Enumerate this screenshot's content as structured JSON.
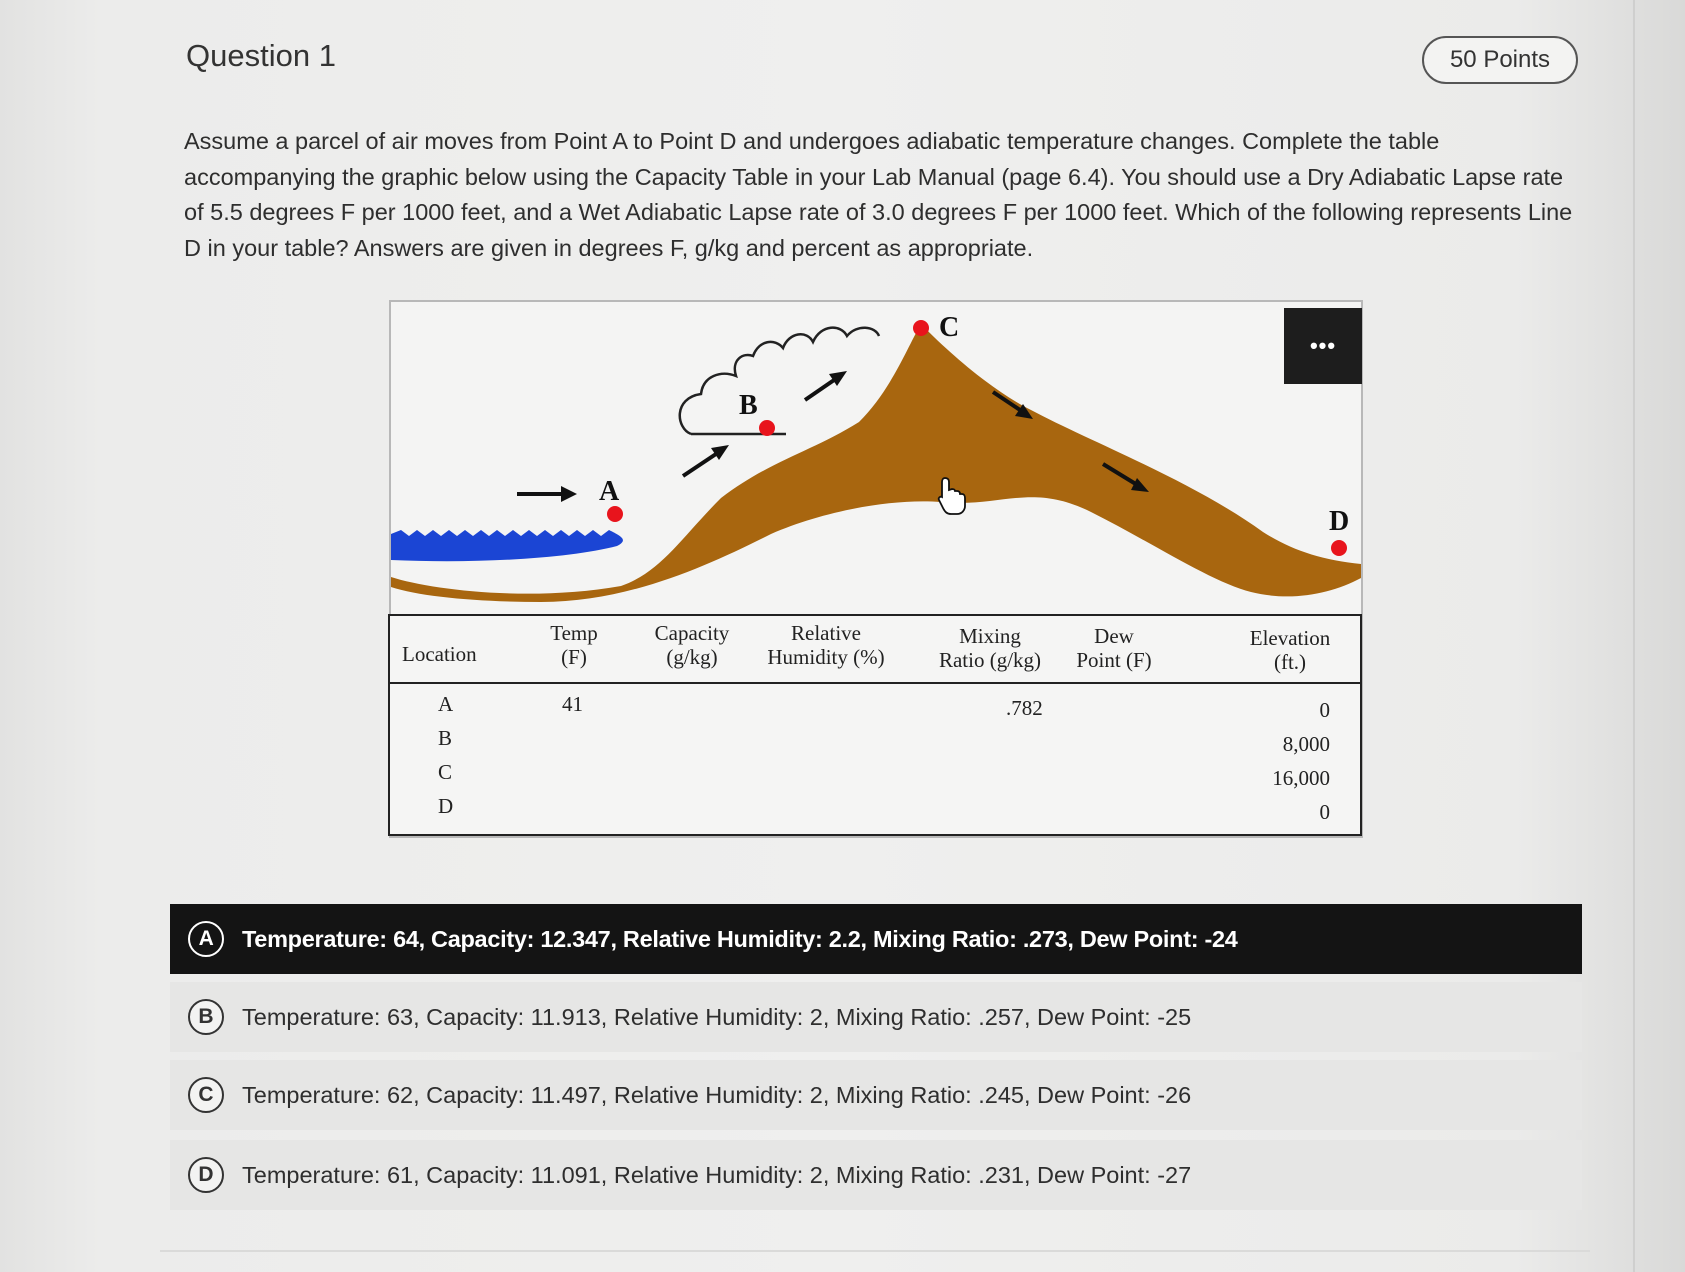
{
  "question": {
    "title": "Question 1",
    "points": "50 Points",
    "prompt_lines": [
      "Assume a parcel of air moves from Point A to Point D and undergoes adiabatic temperature changes. Complete the table",
      "accompanying the graphic below using the Capacity Table in your Lab Manual (page 6.4). You should use a Dry Adiabatic Lapse rate",
      "of 5.5 degrees F per 1000 feet, and a Wet Adiabatic Lapse rate of 3.0 degrees F per 1000 feet. Which of the following represents Line",
      "D in your table? Answers are given in degrees F, g/kg and percent as appropriate."
    ]
  },
  "figure": {
    "more_button": "•••",
    "point_labels": {
      "a": "A",
      "b": "B",
      "c": "C",
      "d": "D"
    },
    "colors": {
      "mountain": "#a8660f",
      "water": "#1b45d4",
      "point": "#e8141c"
    },
    "table": {
      "headers": {
        "location": "Location",
        "temp": [
          "Temp",
          "(F)"
        ],
        "capacity": [
          "Capacity",
          "(g/kg)"
        ],
        "rh": [
          "Relative",
          "Humidity (%)"
        ],
        "mixing": [
          "Mixing",
          "Ratio (g/kg)"
        ],
        "dew": [
          "Dew",
          "Point (F)"
        ],
        "elevation": [
          "Elevation",
          "(ft.)"
        ]
      },
      "rows": [
        {
          "location": "A",
          "temp": "41",
          "mixing": ".782",
          "elevation": "0"
        },
        {
          "location": "B",
          "temp": "",
          "mixing": "",
          "elevation": "8,000"
        },
        {
          "location": "C",
          "temp": "",
          "mixing": "",
          "elevation": "16,000"
        },
        {
          "location": "D",
          "temp": "",
          "mixing": "",
          "elevation": "0"
        }
      ]
    }
  },
  "answers": [
    {
      "letter": "A",
      "text": "Temperature: 64, Capacity: 12.347, Relative Humidity: 2.2, Mixing Ratio: .273, Dew Point: -24",
      "selected": true
    },
    {
      "letter": "B",
      "text": "Temperature: 63, Capacity: 11.913, Relative Humidity: 2, Mixing Ratio: .257, Dew Point: -25",
      "selected": false
    },
    {
      "letter": "C",
      "text": "Temperature: 62, Capacity: 11.497, Relative Humidity: 2, Mixing Ratio: .245, Dew Point: -26",
      "selected": false
    },
    {
      "letter": "D",
      "text": "Temperature: 61, Capacity: 11.091, Relative Humidity: 2, Mixing Ratio: .231, Dew Point: -27",
      "selected": false
    }
  ]
}
